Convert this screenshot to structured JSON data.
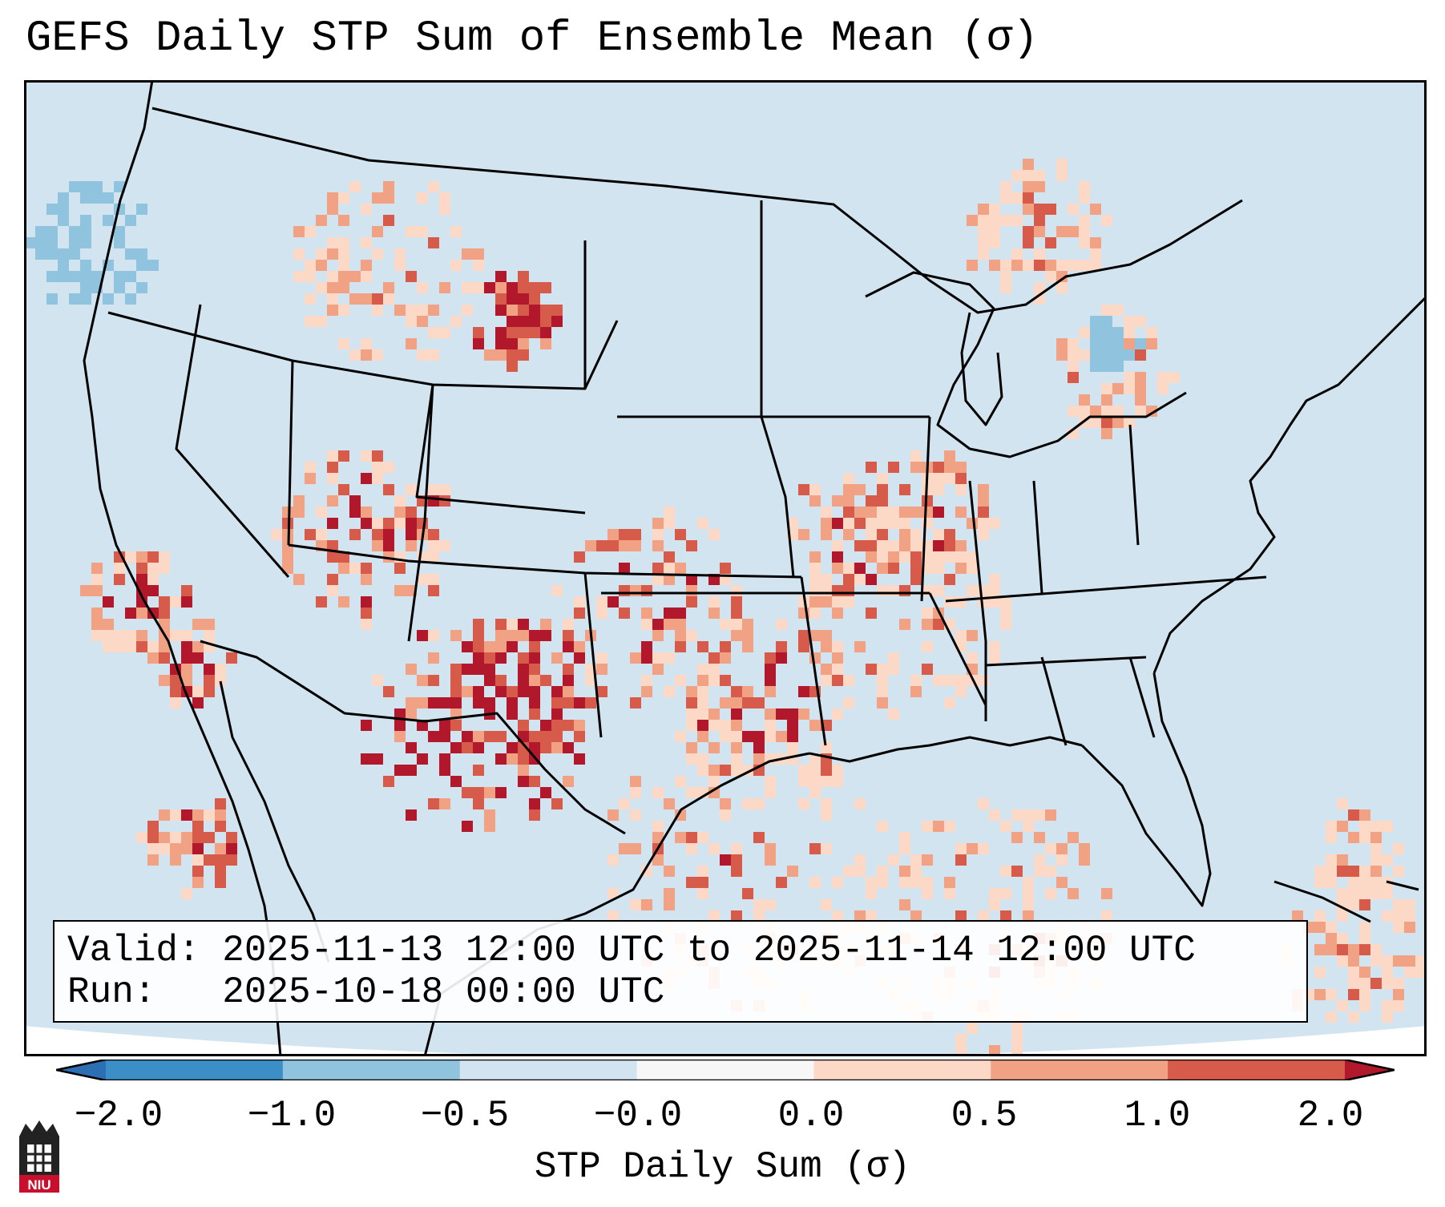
{
  "title": "GEFS Daily STP Sum of Ensemble Mean (σ)",
  "info": {
    "valid": "Valid: 2025-11-13 12:00 UTC to 2025-11-14 12:00 UTC",
    "run": "Run:   2025-10-18 00:00 UTC"
  },
  "colorbar": {
    "label": "STP Daily Sum (σ)",
    "ticks": [
      "−2.0",
      "−1.0",
      "−0.5",
      "−0.0",
      "0.0",
      "0.5",
      "1.0",
      "2.0"
    ],
    "bins": [
      {
        "range": "< -2.0",
        "color": "#2c6fb3"
      },
      {
        "range": "-2.0 to -1.0",
        "color": "#3c8fc6"
      },
      {
        "range": "-1.0 to -0.5",
        "color": "#8fc3de"
      },
      {
        "range": "-0.5 to -0.0",
        "color": "#d1e4f0"
      },
      {
        "range": "-0.0 to 0.0",
        "color": "#f7f7f7"
      },
      {
        "range": "0.0 to 0.5",
        "color": "#fcd9c6"
      },
      {
        "range": "0.5 to 1.0",
        "color": "#f1a184"
      },
      {
        "range": "1.0 to 2.0",
        "color": "#d65b4b"
      },
      {
        "range": "> 2.0",
        "color": "#b2182b"
      }
    ]
  },
  "logo": {
    "text": "NIU",
    "color": "#c8102e"
  },
  "colors": {
    "background_field": "#d1e4f0",
    "outline": "#000000"
  }
}
